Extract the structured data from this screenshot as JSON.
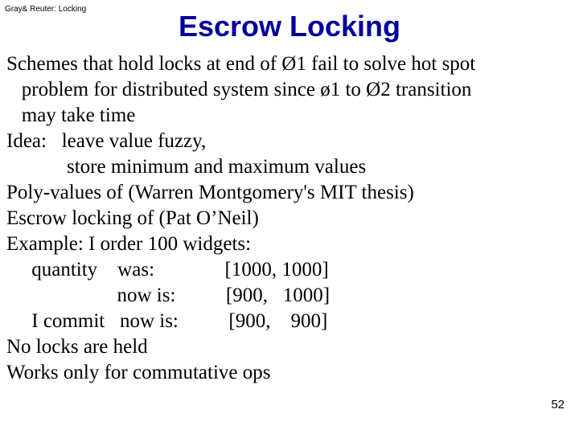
{
  "header": {
    "label": "Gray& Reuter: Locking"
  },
  "title": "Escrow Locking",
  "lines": {
    "l0": "Schemes that hold locks at end of Ø1 fail to solve hot spot",
    "l1": "   problem for distributed system since ø1 to Ø2 transition",
    "l2": "   may take time",
    "l3": "Idea:   leave value fuzzy,",
    "l4": "            store minimum and maximum values",
    "l5": "Poly-values of (Warren Montgomery's MIT thesis)",
    "l6": "Escrow locking of (Pat O’Neil)",
    "l7": "Example: I order 100 widgets:",
    "l8": "     quantity    was:              [1000, 1000]",
    "l9": "                      now is:          [900,   1000]",
    "l10": "     I commit   now is:          [900,    900]",
    "l11": "No locks are held",
    "l12": "Works only for commutative ops"
  },
  "pageNumber": "52",
  "style": {
    "background_color": "#ffffff",
    "title_color": "#000099",
    "title_fontsize": 36,
    "body_fontsize": 25,
    "body_color": "#000000",
    "header_fontsize": 10,
    "page_number_fontsize": 15
  }
}
